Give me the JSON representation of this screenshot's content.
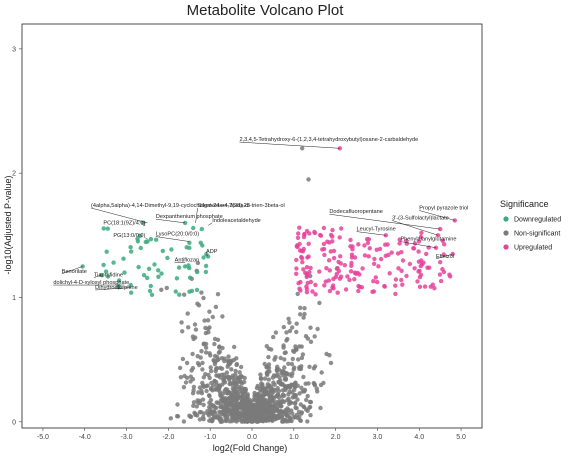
{
  "chart_data": {
    "type": "scatter",
    "title": "Metabolite Volcano Plot",
    "xlabel": "log2(Fold Change)",
    "ylabel": "-log10(Adjusted P-value)",
    "xlim": [
      -5.5,
      5.5
    ],
    "ylim": [
      -0.05,
      3.2
    ],
    "xticks": [
      {
        "v": -5,
        "label": "-5.0"
      },
      {
        "v": -4,
        "label": "-4.0"
      },
      {
        "v": -3,
        "label": "-3.0"
      },
      {
        "v": -2,
        "label": "-2.0"
      },
      {
        "v": -1,
        "label": "-1.0"
      },
      {
        "v": 0,
        "label": "0.0"
      },
      {
        "v": 1,
        "label": "1.0"
      },
      {
        "v": 2,
        "label": "2.0"
      },
      {
        "v": 3,
        "label": "3.0"
      },
      {
        "v": 4,
        "label": "4.0"
      },
      {
        "v": 5,
        "label": "5.0"
      }
    ],
    "yticks": [
      {
        "v": 0,
        "label": "0"
      },
      {
        "v": 1,
        "label": "1"
      },
      {
        "v": 2,
        "label": "2"
      },
      {
        "v": 3,
        "label": "3"
      }
    ],
    "grid": false,
    "legend": {
      "title": "Significance",
      "placement": "right",
      "entries": [
        {
          "name": "Downregulated",
          "color": "#3aaa80"
        },
        {
          "name": "Non-significant",
          "color": "#7a7a7a"
        },
        {
          "name": "Upregulated",
          "color": "#e8429a"
        }
      ]
    },
    "generated_points": {
      "nonsig_count": 1100,
      "down_count": 55,
      "up_count": 190,
      "seed": 7
    },
    "points_highlight": [
      {
        "x": 1.2,
        "y": 2.2,
        "group": "Non-significant"
      },
      {
        "x": 1.35,
        "y": 1.95,
        "group": "Non-significant"
      },
      {
        "x": 2.1,
        "y": 2.2,
        "group": "Upregulated"
      },
      {
        "x": 4.85,
        "y": 1.62,
        "group": "Upregulated"
      },
      {
        "x": 4.5,
        "y": 1.55,
        "group": "Upregulated"
      },
      {
        "x": 4.45,
        "y": 1.5,
        "group": "Upregulated"
      },
      {
        "x": 4.4,
        "y": 1.4,
        "group": "Upregulated"
      },
      {
        "x": 4.8,
        "y": 1.35,
        "group": "Upregulated"
      },
      {
        "x": 3.2,
        "y": 1.5,
        "group": "Upregulated"
      },
      {
        "x": 4.05,
        "y": 1.52,
        "group": "Upregulated"
      },
      {
        "x": -4.05,
        "y": 1.25,
        "group": "Downregulated"
      },
      {
        "x": -3.6,
        "y": 1.18,
        "group": "Downregulated"
      },
      {
        "x": -3.05,
        "y": 1.2,
        "group": "Downregulated"
      },
      {
        "x": -2.9,
        "y": 1.1,
        "group": "Downregulated"
      },
      {
        "x": -2.5,
        "y": 1.45,
        "group": "Downregulated"
      },
      {
        "x": -2.6,
        "y": 1.6,
        "group": "Downregulated"
      },
      {
        "x": -1.6,
        "y": 1.6,
        "group": "Downregulated"
      },
      {
        "x": -1.2,
        "y": 1.55,
        "group": "Downregulated"
      },
      {
        "x": -1.5,
        "y": 1.4,
        "group": "Downregulated"
      },
      {
        "x": -1.05,
        "y": 1.33,
        "group": "Downregulated"
      },
      {
        "x": -1.6,
        "y": 1.25,
        "group": "Downregulated"
      }
    ],
    "annotations": [
      {
        "text": "2,3,4,5-Tetrahydroxy-6-(1,2,3,4-tetrahydroxybutyl)oxane-2-carbaldehyde",
        "x": 2.1,
        "y": 2.2,
        "lx": -0.3,
        "ly": 2.25,
        "anchor": "start"
      },
      {
        "text": "(4alpha,5alpha)-4,14-Dimethyl-9,19-cyclocholest-24-en-3beta-ol",
        "x": -2.5,
        "y": 1.6,
        "lx": -3.85,
        "ly": 1.72,
        "anchor": "start"
      },
      {
        "text": "Stigmasta-4,7(28),25-trien-3beta-ol",
        "x": -1.35,
        "y": 1.6,
        "lx": -1.3,
        "ly": 1.72,
        "anchor": "start"
      },
      {
        "text": "Dexpanthenium phosphate",
        "x": -1.6,
        "y": 1.6,
        "lx": -2.3,
        "ly": 1.63,
        "anchor": "start"
      },
      {
        "text": "Indoleacetaldehyde",
        "x": -1.05,
        "y": 1.58,
        "lx": -0.95,
        "ly": 1.6,
        "anchor": "start"
      },
      {
        "text": "PC(18:1(9Z)/4:0)",
        "x": -2.6,
        "y": 1.58,
        "lx": -2.55,
        "ly": 1.58,
        "anchor": "end"
      },
      {
        "text": "PG(13:0/0:0)",
        "x": -2.5,
        "y": 1.47,
        "lx": -2.55,
        "ly": 1.48,
        "anchor": "end"
      },
      {
        "text": "LysoPC(20:0/0:0)",
        "x": -1.5,
        "y": 1.45,
        "lx": -2.3,
        "ly": 1.49,
        "anchor": "start"
      },
      {
        "text": "ADP",
        "x": -1.05,
        "y": 1.33,
        "lx": -1.1,
        "ly": 1.35,
        "anchor": "start"
      },
      {
        "text": "Antiflozan",
        "x": -1.6,
        "y": 1.28,
        "lx": -1.85,
        "ly": 1.28,
        "anchor": "start"
      },
      {
        "text": "Benorilate",
        "x": -4.05,
        "y": 1.25,
        "lx": -4.55,
        "ly": 1.19,
        "anchor": "start"
      },
      {
        "text": "Tiaprofidine",
        "x": -3.6,
        "y": 1.18,
        "lx": -3.78,
        "ly": 1.16,
        "anchor": "start"
      },
      {
        "text": "dolichyl-4-D-xylosyl phosphate",
        "x": -3.05,
        "y": 1.1,
        "lx": -4.75,
        "ly": 1.1,
        "anchor": "start"
      },
      {
        "text": "Dihydroetorphine",
        "x": -2.9,
        "y": 1.08,
        "lx": -3.75,
        "ly": 1.06,
        "anchor": "start"
      },
      {
        "text": "Dodecafluoropentane",
        "x": 4.5,
        "y": 1.55,
        "lx": 1.85,
        "ly": 1.67,
        "anchor": "start"
      },
      {
        "text": "Propyl pyrazole triol",
        "x": 4.85,
        "y": 1.62,
        "lx": 4.0,
        "ly": 1.7,
        "anchor": "start"
      },
      {
        "text": "3'-(3-Sulfolactyl)lactate",
        "x": 4.45,
        "y": 1.5,
        "lx": 3.35,
        "ly": 1.62,
        "anchor": "start"
      },
      {
        "text": "Leucyl-Tyrosine",
        "x": 3.2,
        "y": 1.5,
        "lx": 2.5,
        "ly": 1.53,
        "anchor": "start"
      },
      {
        "text": "Phenylalanylglutamine",
        "x": 4.4,
        "y": 1.4,
        "lx": 3.55,
        "ly": 1.45,
        "anchor": "start"
      },
      {
        "text": "Efinizol",
        "x": 4.8,
        "y": 1.35,
        "lx": 4.4,
        "ly": 1.31,
        "anchor": "start"
      }
    ]
  }
}
